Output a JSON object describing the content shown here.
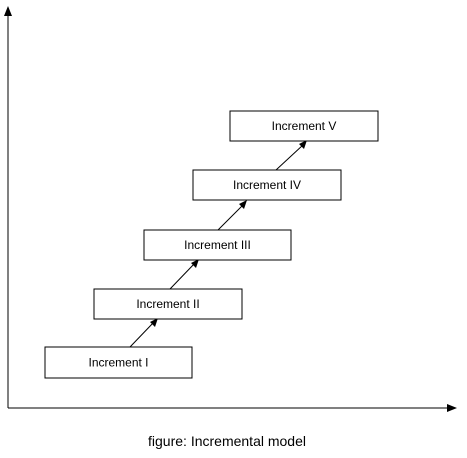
{
  "diagram": {
    "increments": [
      {
        "label": "Increment I"
      },
      {
        "label": "Increment II"
      },
      {
        "label": "Increment III"
      },
      {
        "label": "Increment IV"
      },
      {
        "label": "Increment V"
      }
    ],
    "caption": "figure: Incremental model"
  }
}
